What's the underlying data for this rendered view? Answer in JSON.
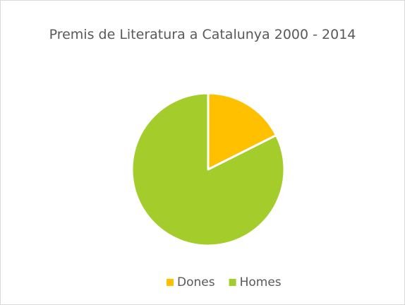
{
  "chart_data": {
    "type": "pie",
    "title": "Premis de Literatura a Catalunya 2000 - 2014",
    "categories": [
      "Dones",
      "Homes"
    ],
    "values": [
      17.6,
      82.4
    ],
    "colors": [
      "#ffc000",
      "#a4cc2a"
    ],
    "legend": "bottom"
  }
}
